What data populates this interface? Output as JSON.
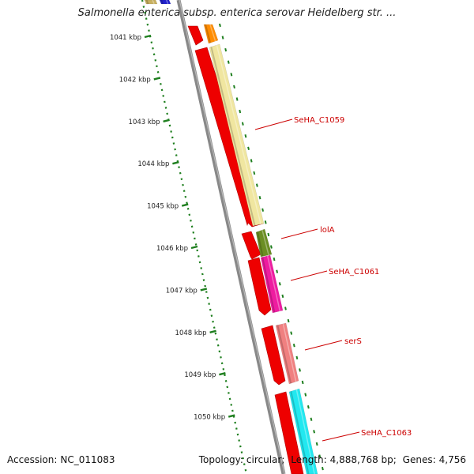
{
  "title": "Salmonella enterica subsp. enterica serovar Heidelberg str. ...",
  "footer": {
    "accession_label": "Accession:",
    "accession": "NC_011083",
    "topology_label": "Topology:",
    "topology": "circular",
    "length_label": "Length:",
    "length": "4,888,768 bp",
    "genes_label": "Genes:",
    "genes": "4,756"
  },
  "ruler_ticks": [
    "1041 kbp",
    "1042 kbp",
    "1043 kbp",
    "1044 kbp",
    "1045 kbp",
    "1046 kbp",
    "1047 kbp",
    "1048 kbp",
    "1049 kbp",
    "1050 kbp"
  ],
  "colors": {
    "backbone": "#888888",
    "cds_red": "#ee0000",
    "ruler_green": "#1f7f1f",
    "label_red": "#cc0000"
  },
  "features": [
    {
      "track": "red",
      "color": "#ee0000"
    },
    {
      "track": "red",
      "color": "#ee0000"
    },
    {
      "track": "red",
      "color": "#ee0000"
    },
    {
      "track": "red",
      "color": "#ee0000"
    },
    {
      "track": "red",
      "color": "#ee0000"
    },
    {
      "track": "red",
      "color": "#ee0000"
    },
    {
      "track": "outer",
      "color": "#c8b060"
    },
    {
      "track": "outer",
      "color": "#2020cc"
    },
    {
      "track": "outer",
      "color": "#ff8c00"
    },
    {
      "track": "outer",
      "color": "#f0e6a0",
      "label": "SeHA_C1059"
    },
    {
      "track": "outer",
      "color": "#6b8e23",
      "label": "lolA"
    },
    {
      "track": "outer",
      "color": "#ee1ca0",
      "label": "SeHA_C1061"
    },
    {
      "track": "outer",
      "color": "#f08080",
      "label": "serS"
    },
    {
      "track": "outer",
      "color": "#22e8f0",
      "label": "SeHA_C1063"
    }
  ]
}
